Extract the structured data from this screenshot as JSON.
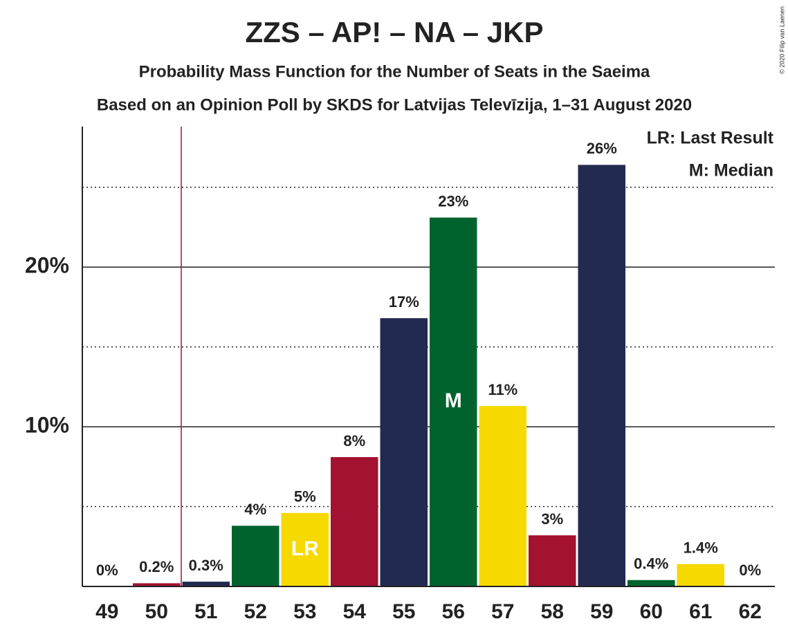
{
  "chart_data": {
    "type": "bar",
    "title": "ZZS – AP! – NA – JKP",
    "subtitle": "Probability Mass Function for the Number of Seats in the Saeima",
    "subtitle2": "Based on an Opinion Poll by SKDS for Latvijas Televīzija, 1–31 August 2020",
    "x": [
      49,
      50,
      51,
      52,
      53,
      54,
      55,
      56,
      57,
      58,
      59,
      60,
      61,
      62
    ],
    "values": [
      0,
      0.2,
      0.3,
      3.8,
      4.6,
      8.1,
      16.8,
      23.1,
      11.3,
      3.2,
      26.4,
      0.4,
      1.4,
      0
    ],
    "value_labels": [
      "0%",
      "0.2%",
      "0.3%",
      "4%",
      "5%",
      "8%",
      "17%",
      "23%",
      "11%",
      "3%",
      "26%",
      "0.4%",
      "1.4%",
      "0%"
    ],
    "colors": [
      "#f6d900",
      "#a31230",
      "#222a50",
      "#00632e",
      "#f6d900",
      "#a31230",
      "#222a50",
      "#00632e",
      "#f6d900",
      "#a31230",
      "#222a50",
      "#00632e",
      "#f6d900",
      "#a31230"
    ],
    "xlim": [
      48.5,
      62.5
    ],
    "ylim": [
      0,
      28.8
    ],
    "yticks": [
      {
        "value": 10,
        "label": "10%"
      },
      {
        "value": 20,
        "label": "20%"
      }
    ],
    "minor_yticks": [
      5,
      15,
      25
    ],
    "grid": true,
    "vertical_line": 50.5,
    "last_result": 53,
    "last_result_label": "LR",
    "median": 56,
    "median_label": "M",
    "legend": [
      "LR: Last Result",
      "M: Median"
    ],
    "legend_position": "upper right",
    "copyright": "© 2020 Filip van Laenen"
  }
}
